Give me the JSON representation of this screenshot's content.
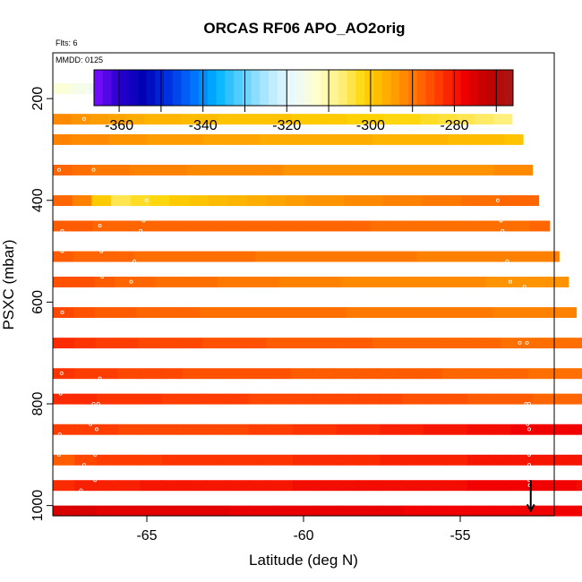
{
  "chart_data": {
    "type": "heatmap",
    "title": "ORCAS RF06 APO_AO2orig",
    "annotations": {
      "flights": "Flts: 6",
      "date": "MMDD: 0125"
    },
    "xlabel": "Latitude (deg N)",
    "ylabel": "PSXC (mbar)",
    "xlim": [
      -68.0,
      -52.0
    ],
    "ylim": [
      1020,
      110
    ],
    "x_ticks": [
      -65,
      -60,
      -55
    ],
    "y_ticks": [
      200,
      400,
      600,
      800,
      1000
    ],
    "colorbar": {
      "range": [
        -366,
        -266
      ],
      "ticks": [
        -360,
        -340,
        -320,
        -300,
        -280
      ],
      "stops": [
        "#7f10ff",
        "#2a00d0",
        "#0000b4",
        "#0030e0",
        "#0070ff",
        "#00b4ff",
        "#5fd0ff",
        "#b0e8ff",
        "#eaf8ff",
        "#ffffd0",
        "#fff080",
        "#ffd400",
        "#ffa800",
        "#ff7400",
        "#ff3a00",
        "#f00000",
        "#c00000",
        "#a81818"
      ]
    },
    "layer_height_mbar": 20,
    "rows": [
      {
        "p": 180,
        "lat_max": -53.55,
        "values": [
          -314,
          -316,
          -318,
          -320,
          -318,
          -322,
          -321,
          -318,
          -320,
          -323,
          -321,
          -319,
          -318,
          -318,
          -320,
          -318,
          -319,
          -315,
          -314,
          -314,
          -312,
          -308,
          -306,
          -304,
          -302
        ]
      },
      {
        "p": 240,
        "lat_max": -53.35,
        "values": [
          -292,
          -293,
          -294,
          -295,
          -296,
          -297,
          -297,
          -298,
          -298,
          -299,
          -299,
          -299,
          -299,
          -300,
          -300,
          -300,
          -301,
          -301,
          -302,
          -302,
          -303,
          -304,
          -305,
          -306,
          -307
        ]
      },
      {
        "p": 280,
        "lat_max": -53.0,
        "values": [
          -291,
          -292,
          -292,
          -293,
          -293,
          -294,
          -294,
          -294,
          -295,
          -295,
          -295,
          -296,
          -296,
          -296,
          -296,
          -296,
          -296,
          -297,
          -297,
          -297,
          -297,
          -298,
          -298,
          -298,
          -299
        ]
      },
      {
        "p": 340,
        "lat_max": -52.7,
        "values": [
          -288,
          -289,
          -290,
          -290,
          -291,
          -291,
          -291,
          -292,
          -292,
          -292,
          -292,
          -292,
          -293,
          -293,
          -293,
          -293,
          -293,
          -293,
          -293,
          -293,
          -293,
          -293,
          -293,
          -292,
          -292
        ]
      },
      {
        "p": 400,
        "lat_max": -52.5,
        "values": [
          -288,
          -291,
          -300,
          -305,
          -303,
          -302,
          -300,
          -299,
          -298,
          -297,
          -296,
          -295,
          -294,
          -293,
          -293,
          -292,
          -292,
          -291,
          -291,
          -290,
          -290,
          -289,
          -289,
          -288,
          -288
        ]
      },
      {
        "p": 450,
        "lat_max": -52.15,
        "values": [
          -287,
          -287,
          -288,
          -288,
          -288,
          -288,
          -288,
          -288,
          -288,
          -288,
          -288,
          -288,
          -288,
          -288,
          -288,
          -288,
          -289,
          -289,
          -289,
          -289,
          -289,
          -289,
          -289,
          -289,
          -288
        ]
      },
      {
        "p": 510,
        "lat_max": -51.85,
        "values": [
          -287,
          -288,
          -288,
          -288,
          -289,
          -289,
          -289,
          -289,
          -289,
          -289,
          -290,
          -290,
          -290,
          -290,
          -290,
          -290,
          -290,
          -290,
          -291,
          -291,
          -291,
          -291,
          -291,
          -291,
          -291
        ]
      },
      {
        "p": 560,
        "lat_max": -51.55,
        "values": [
          -286,
          -286,
          -287,
          -288,
          -288,
          -289,
          -289,
          -289,
          -290,
          -290,
          -290,
          -291,
          -291,
          -291,
          -292,
          -292,
          -292,
          -292,
          -292,
          -292,
          -292,
          -293,
          -293,
          -293,
          -293
        ]
      },
      {
        "p": 620,
        "lat_max": -51.3,
        "values": [
          -285,
          -286,
          -287,
          -287,
          -288,
          -288,
          -288,
          -289,
          -289,
          -289,
          -289,
          -289,
          -289,
          -289,
          -290,
          -290,
          -290,
          -290,
          -290,
          -290,
          -290,
          -291,
          -291,
          -291,
          -291
        ]
      },
      {
        "p": 680,
        "lat_max": -51.0,
        "values": [
          -282,
          -283,
          -284,
          -284,
          -285,
          -285,
          -285,
          -286,
          -286,
          -286,
          -287,
          -287,
          -287,
          -287,
          -287,
          -288,
          -288,
          -288,
          -288,
          -288,
          -288,
          -289,
          -289,
          -289,
          -289
        ]
      },
      {
        "p": 740,
        "lat_max": -50.75,
        "values": [
          -283,
          -284,
          -284,
          -285,
          -285,
          -285,
          -286,
          -286,
          -286,
          -286,
          -286,
          -287,
          -287,
          -287,
          -287,
          -287,
          -287,
          -287,
          -288,
          -288,
          -288,
          -288,
          -289,
          -289,
          -289
        ]
      },
      {
        "p": 790,
        "lat_max": -50.6,
        "values": [
          -282,
          -282,
          -283,
          -283,
          -283,
          -284,
          -284,
          -284,
          -284,
          -285,
          -285,
          -285,
          -285,
          -285,
          -285,
          -285,
          -286,
          -286,
          -286,
          -287,
          -287,
          -287,
          -288,
          -288,
          -288
        ]
      },
      {
        "p": 850,
        "lat_max": -50.6,
        "values": [
          -284,
          -284,
          -284,
          -285,
          -285,
          -285,
          -285,
          -285,
          -285,
          -284,
          -284,
          -283,
          -283,
          -282,
          -282,
          -281,
          -281,
          -280,
          -280,
          -279,
          -279,
          -278,
          -278,
          -278,
          -278
        ]
      },
      {
        "p": 910,
        "lat_max": -50.6,
        "values": [
          -287,
          -285,
          -284,
          -284,
          -284,
          -283,
          -283,
          -283,
          -283,
          -283,
          -283,
          -282,
          -282,
          -282,
          -282,
          -281,
          -281,
          -281,
          -281,
          -280,
          -280,
          -280,
          -280,
          -280,
          -280
        ]
      },
      {
        "p": 960,
        "lat_max": -50.6,
        "values": [
          -282,
          -281,
          -281,
          -281,
          -280,
          -280,
          -280,
          -280,
          -280,
          -280,
          -280,
          -279,
          -279,
          -279,
          -279,
          -279,
          -279,
          -279,
          -279,
          -278,
          -278,
          -278,
          -278,
          -278,
          -279
        ]
      },
      {
        "p": 1010,
        "lat_max": -50.5,
        "values": [
          -275,
          -275,
          -276,
          -276,
          -276,
          -276,
          -276,
          -276,
          -277,
          -277,
          -277,
          -277,
          -277,
          -277,
          -277,
          -277,
          -278,
          -278,
          -278,
          -278,
          -278,
          -278,
          -278,
          -278,
          -278
        ]
      }
    ],
    "edge_strip_rows": [
      {
        "p": 680,
        "lat_min": -51.0,
        "lat_max": -50.75,
        "value": -274
      },
      {
        "p": 740,
        "lat_min": -50.75,
        "lat_max": -50.6,
        "value": -270
      },
      {
        "p": 790,
        "lat_min": -50.6,
        "lat_max": -50.6,
        "value": -270
      }
    ],
    "flight_track": [
      [
        -57.5,
        190
      ],
      [
        -57.7,
        185
      ],
      [
        -58.0,
        182
      ],
      [
        -59.0,
        181
      ],
      [
        -60.5,
        181
      ],
      [
        -62.0,
        181
      ],
      [
        -63.5,
        181
      ],
      [
        -65.0,
        181
      ],
      [
        -66.3,
        181
      ],
      [
        -66.9,
        186
      ],
      [
        -67.0,
        200
      ],
      [
        -67.1,
        220
      ],
      [
        -67.0,
        240
      ],
      [
        -66.9,
        260
      ],
      [
        -66.8,
        300
      ],
      [
        -66.7,
        340
      ],
      [
        -66.6,
        380
      ],
      [
        -66.55,
        420
      ],
      [
        -66.5,
        450
      ],
      [
        -66.45,
        500
      ],
      [
        -66.42,
        550
      ],
      [
        -66.4,
        600
      ],
      [
        -66.4,
        650
      ],
      [
        -66.45,
        700
      ],
      [
        -66.5,
        750
      ],
      [
        -66.55,
        800
      ],
      [
        -66.6,
        850
      ],
      [
        -66.65,
        900
      ],
      [
        -66.65,
        950
      ],
      [
        -66.7,
        990
      ],
      [
        -53.8,
        400
      ],
      [
        -53.75,
        420
      ],
      [
        -53.7,
        440
      ],
      [
        -53.65,
        460
      ],
      [
        -53.6,
        480
      ],
      [
        -53.5,
        520
      ],
      [
        -53.45,
        540
      ],
      [
        -53.4,
        560
      ],
      [
        -53.35,
        580
      ],
      [
        -53.3,
        600
      ],
      [
        -53.2,
        640
      ],
      [
        -53.1,
        680
      ],
      [
        -53.0,
        720
      ],
      [
        -52.95,
        760
      ],
      [
        -52.9,
        800
      ],
      [
        -52.85,
        840
      ],
      [
        -52.82,
        880
      ],
      [
        -52.8,
        920
      ],
      [
        -52.78,
        960
      ],
      [
        -52.76,
        1000
      ],
      [
        -67.95,
        215
      ],
      [
        -67.9,
        260
      ],
      [
        -67.85,
        300
      ],
      [
        -67.8,
        340
      ],
      [
        -67.8,
        380
      ],
      [
        -67.75,
        420
      ],
      [
        -67.7,
        460
      ],
      [
        -67.7,
        500
      ],
      [
        -67.7,
        540
      ],
      [
        -67.7,
        580
      ],
      [
        -67.7,
        620
      ],
      [
        -67.7,
        660
      ],
      [
        -67.72,
        700
      ],
      [
        -67.72,
        740
      ],
      [
        -67.75,
        780
      ],
      [
        -67.75,
        820
      ],
      [
        -67.78,
        860
      ],
      [
        -67.8,
        900
      ],
      [
        -67.8,
        940
      ],
      [
        -67.82,
        980
      ],
      [
        -65.0,
        400
      ],
      [
        -65.05,
        420
      ],
      [
        -65.1,
        440
      ],
      [
        -65.2,
        460
      ],
      [
        -65.3,
        480
      ],
      [
        -65.4,
        520
      ],
      [
        -65.5,
        560
      ],
      [
        -65.6,
        600
      ],
      [
        -65.7,
        640
      ],
      [
        -65.8,
        700
      ],
      [
        -53.0,
        540
      ],
      [
        -52.95,
        570
      ],
      [
        -52.92,
        600
      ],
      [
        -52.9,
        640
      ],
      [
        -52.87,
        680
      ],
      [
        -52.85,
        720
      ],
      [
        -52.83,
        760
      ],
      [
        -52.8,
        800
      ],
      [
        -52.8,
        850
      ],
      [
        -52.8,
        900
      ],
      [
        -67.0,
        920
      ],
      [
        -66.9,
        880
      ],
      [
        -66.8,
        840
      ],
      [
        -66.7,
        800
      ],
      [
        -66.6,
        760
      ],
      [
        -67.1,
        970
      ],
      [
        -67.2,
        980
      ],
      [
        -52.8,
        950
      ],
      [
        -52.85,
        990
      ],
      [
        -52.75,
        1005
      ]
    ],
    "end_arrow": {
      "lat": -52.75,
      "p_from": 950,
      "p_to": 1010
    }
  }
}
